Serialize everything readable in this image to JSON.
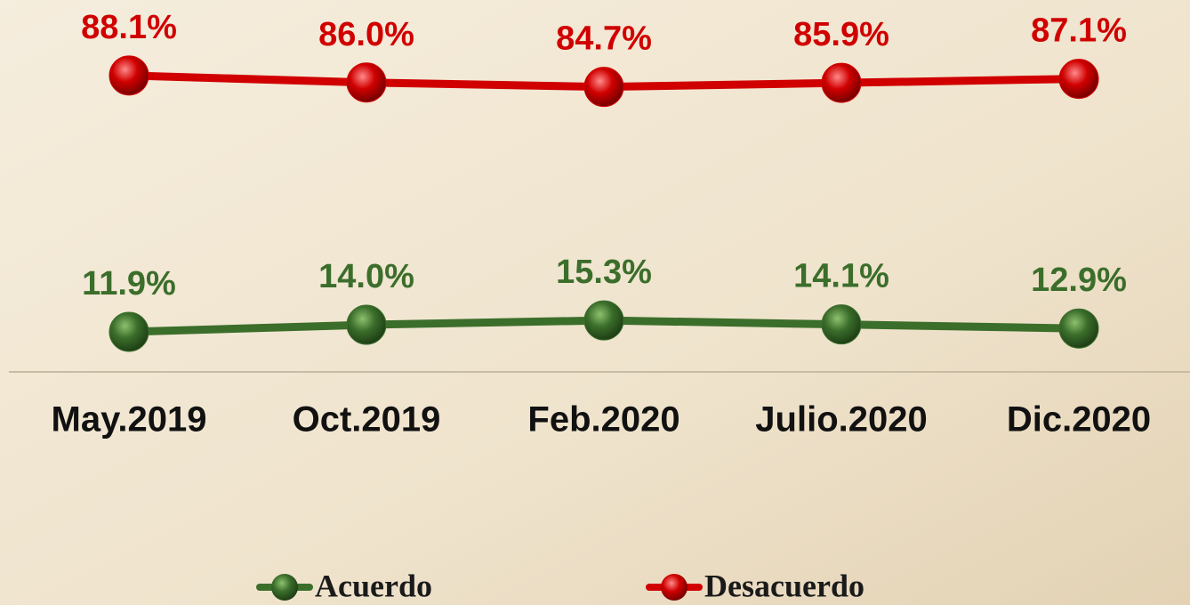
{
  "chart_data": {
    "type": "line",
    "categories": [
      "May.2019",
      "Oct.2019",
      "Feb.2020",
      "Julio.2020",
      "Dic.2020"
    ],
    "series": [
      {
        "name": "Acuerdo",
        "color": "#3b6e2b",
        "values": [
          11.9,
          14.0,
          15.3,
          14.1,
          12.9
        ],
        "value_labels": [
          "11.9%",
          "14.0%",
          "15.3%",
          "14.1%",
          "12.9%"
        ]
      },
      {
        "name": "Desacuerdo",
        "color": "#d00000",
        "values": [
          88.1,
          86.0,
          84.7,
          85.9,
          87.1
        ],
        "value_labels": [
          "88.1%",
          "86.0%",
          "84.7%",
          "85.9%",
          "87.1%"
        ]
      }
    ],
    "ylim": [
      0,
      110
    ],
    "legend": "bottom"
  }
}
